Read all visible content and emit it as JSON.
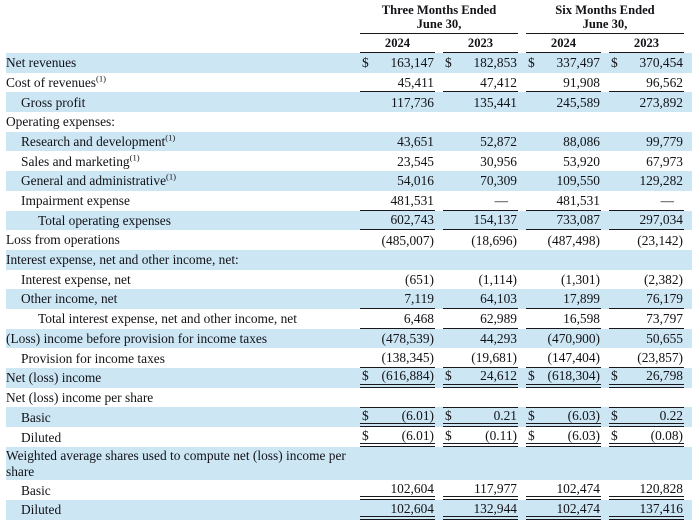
{
  "table": {
    "currency_symbol": "$",
    "colors": {
      "shaded_row": "#cce6f4",
      "border": "#17171c",
      "text": "#121217",
      "background": "#ffffff"
    },
    "header": {
      "groups": [
        {
          "line1": "Three Months Ended",
          "line2": "June 30,"
        },
        {
          "line1": "Six Months Ended",
          "line2": "June 30,"
        }
      ],
      "years": [
        "2024",
        "2023",
        "2024",
        "2023"
      ]
    },
    "rows": [
      {
        "label": "Net revenues",
        "indent": 0,
        "shaded": true,
        "dollar": true,
        "values": [
          "163,147",
          "182,853",
          "337,497",
          "370,454"
        ]
      },
      {
        "label": "Cost of revenues",
        "sup": "(1)",
        "indent": 0,
        "shaded": false,
        "dollar": false,
        "values": [
          "45,411",
          "47,412",
          "91,908",
          "96,562"
        ],
        "bottom": "single"
      },
      {
        "label": "Gross profit",
        "indent": 1,
        "shaded": true,
        "dollar": false,
        "values": [
          "117,736",
          "135,441",
          "245,589",
          "273,892"
        ]
      },
      {
        "label": "Operating expenses:",
        "indent": 0,
        "shaded": false,
        "dollar": false,
        "values": null
      },
      {
        "label": "Research and development",
        "sup": "(1)",
        "indent": 1,
        "shaded": true,
        "dollar": false,
        "values": [
          "43,651",
          "52,872",
          "88,086",
          "99,779"
        ]
      },
      {
        "label": "Sales and marketing",
        "sup": "(1)",
        "indent": 1,
        "shaded": false,
        "dollar": false,
        "values": [
          "23,545",
          "30,956",
          "53,920",
          "67,973"
        ]
      },
      {
        "label": "General and administrative",
        "sup": "(1)",
        "indent": 1,
        "shaded": true,
        "dollar": false,
        "values": [
          "54,016",
          "70,309",
          "109,550",
          "129,282"
        ]
      },
      {
        "label": "Impairment expense",
        "indent": 1,
        "shaded": false,
        "dollar": false,
        "values": [
          "481,531",
          "—",
          "481,531",
          "—"
        ],
        "bottom": "single"
      },
      {
        "label": "Total operating expenses",
        "indent": 2,
        "shaded": true,
        "dollar": false,
        "values": [
          "602,743",
          "154,137",
          "733,087",
          "297,034"
        ],
        "bottom": "single"
      },
      {
        "label": "Loss from operations",
        "indent": 0,
        "shaded": false,
        "dollar": false,
        "values": [
          "(485,007)",
          "(18,696)",
          "(487,498)",
          "(23,142)"
        ]
      },
      {
        "label": "Interest expense, net and other income, net:",
        "indent": 0,
        "shaded": true,
        "dollar": false,
        "values": null
      },
      {
        "label": "Interest expense, net",
        "indent": 1,
        "shaded": false,
        "dollar": false,
        "values": [
          "(651)",
          "(1,114)",
          "(1,301)",
          "(2,382)"
        ]
      },
      {
        "label": "Other income, net",
        "indent": 1,
        "shaded": true,
        "dollar": false,
        "values": [
          "7,119",
          "64,103",
          "17,899",
          "76,179"
        ],
        "bottom": "single"
      },
      {
        "label": "Total interest expense, net and other income, net",
        "indent": 2,
        "shaded": false,
        "dollar": false,
        "values": [
          "6,468",
          "62,989",
          "16,598",
          "73,797"
        ],
        "bottom": "single"
      },
      {
        "label": "(Loss) income before provision for income taxes",
        "indent": 0,
        "shaded": true,
        "dollar": false,
        "values": [
          "(478,539)",
          "44,293",
          "(470,900)",
          "50,655"
        ]
      },
      {
        "label": "Provision for income taxes",
        "indent": 1,
        "shaded": false,
        "dollar": false,
        "values": [
          "(138,345)",
          "(19,681)",
          "(147,404)",
          "(23,857)"
        ],
        "bottom": "single"
      },
      {
        "label": "Net (loss) income",
        "indent": 0,
        "shaded": true,
        "dollar": true,
        "values": [
          "(616,884)",
          "24,612",
          "(618,304)",
          "26,798"
        ],
        "bottom": "double"
      },
      {
        "label": "Net (loss) income per share",
        "indent": 0,
        "shaded": false,
        "dollar": false,
        "values": null
      },
      {
        "label": "Basic",
        "indent": 1,
        "shaded": true,
        "dollar": true,
        "values": [
          "(6.01)",
          "0.21",
          "(6.03)",
          "0.22"
        ],
        "top": true,
        "bottom": "double"
      },
      {
        "label": "Diluted",
        "indent": 1,
        "shaded": false,
        "dollar": true,
        "values": [
          "(6.01)",
          "(0.11)",
          "(6.03)",
          "(0.08)"
        ],
        "bottom": "double"
      },
      {
        "label": "Weighted average shares used to compute net (loss) income per share",
        "indent": 0,
        "shaded": true,
        "dollar": false,
        "values": null
      },
      {
        "label": "Basic",
        "indent": 1,
        "shaded": false,
        "dollar": false,
        "values": [
          "102,604",
          "117,977",
          "102,474",
          "120,828"
        ],
        "bottom": "double"
      },
      {
        "label": "Diluted",
        "indent": 1,
        "shaded": true,
        "dollar": false,
        "values": [
          "102,604",
          "132,944",
          "102,474",
          "137,416"
        ],
        "bottom": "double"
      }
    ]
  }
}
